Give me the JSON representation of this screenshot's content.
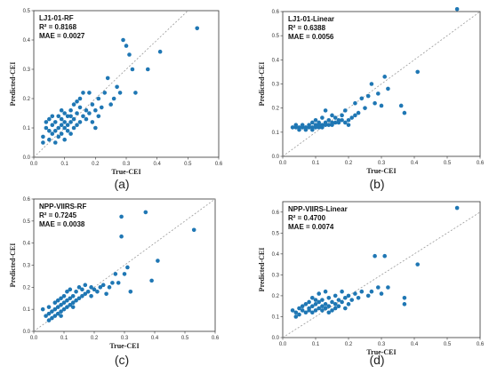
{
  "chart_data": [
    {
      "type": "scatter",
      "panel_label": "(a)",
      "annotations": [
        "LJ1-01-RF",
        "R² = 0.8168",
        "MAE = 0.0027"
      ],
      "xlabel": "True-CEI",
      "ylabel": "Predicted-CEI",
      "xlim": [
        0,
        0.6
      ],
      "ylim": [
        0,
        0.5
      ],
      "xticks": [
        "0.0",
        "0.1",
        "0.2",
        "0.3",
        "0.4",
        "0.5",
        "0.6"
      ],
      "yticks": [
        "0.0",
        "0.1",
        "0.2",
        "0.3",
        "0.4",
        "0.5"
      ],
      "color": "#1f77b4",
      "points": [
        [
          0.03,
          0.07
        ],
        [
          0.04,
          0.1
        ],
        [
          0.04,
          0.12
        ],
        [
          0.05,
          0.06
        ],
        [
          0.05,
          0.09
        ],
        [
          0.05,
          0.13
        ],
        [
          0.06,
          0.08
        ],
        [
          0.06,
          0.11
        ],
        [
          0.07,
          0.05
        ],
        [
          0.07,
          0.09
        ],
        [
          0.07,
          0.12
        ],
        [
          0.08,
          0.07
        ],
        [
          0.08,
          0.1
        ],
        [
          0.08,
          0.14
        ],
        [
          0.09,
          0.08
        ],
        [
          0.09,
          0.11
        ],
        [
          0.09,
          0.13
        ],
        [
          0.1,
          0.06
        ],
        [
          0.1,
          0.1
        ],
        [
          0.1,
          0.12
        ],
        [
          0.1,
          0.15
        ],
        [
          0.11,
          0.09
        ],
        [
          0.11,
          0.11
        ],
        [
          0.11,
          0.14
        ],
        [
          0.12,
          0.08
        ],
        [
          0.12,
          0.12
        ],
        [
          0.12,
          0.16
        ],
        [
          0.13,
          0.1
        ],
        [
          0.13,
          0.13
        ],
        [
          0.13,
          0.18
        ],
        [
          0.14,
          0.11
        ],
        [
          0.14,
          0.15
        ],
        [
          0.15,
          0.12
        ],
        [
          0.15,
          0.17
        ],
        [
          0.15,
          0.2
        ],
        [
          0.16,
          0.14
        ],
        [
          0.16,
          0.22
        ],
        [
          0.17,
          0.13
        ],
        [
          0.17,
          0.16
        ],
        [
          0.18,
          0.22
        ],
        [
          0.18,
          0.15
        ],
        [
          0.19,
          0.12
        ],
        [
          0.19,
          0.18
        ],
        [
          0.2,
          0.1
        ],
        [
          0.2,
          0.16
        ],
        [
          0.21,
          0.14
        ],
        [
          0.21,
          0.2
        ],
        [
          0.22,
          0.17
        ],
        [
          0.23,
          0.22
        ],
        [
          0.24,
          0.27
        ],
        [
          0.25,
          0.18
        ],
        [
          0.26,
          0.2
        ],
        [
          0.27,
          0.24
        ],
        [
          0.28,
          0.22
        ],
        [
          0.29,
          0.4
        ],
        [
          0.3,
          0.38
        ],
        [
          0.31,
          0.35
        ],
        [
          0.32,
          0.3
        ],
        [
          0.33,
          0.22
        ],
        [
          0.37,
          0.3
        ],
        [
          0.41,
          0.36
        ],
        [
          0.53,
          0.44
        ],
        [
          0.03,
          0.05
        ],
        [
          0.06,
          0.14
        ],
        [
          0.09,
          0.16
        ],
        [
          0.12,
          0.14
        ],
        [
          0.14,
          0.19
        ]
      ]
    },
    {
      "type": "scatter",
      "panel_label": "(b)",
      "annotations": [
        "LJ1-01-Linear",
        "R² = 0.6388",
        "MAE = 0.0056"
      ],
      "xlabel": "True-CEI",
      "ylabel": "Predicted-CEI",
      "xlim": [
        0,
        0.6
      ],
      "ylim": [
        0,
        0.6
      ],
      "xticks": [
        "0.0",
        "0.1",
        "0.2",
        "0.3",
        "0.4",
        "0.5",
        "0.6"
      ],
      "yticks": [
        "0.0",
        "0.1",
        "0.2",
        "0.3",
        "0.4",
        "0.5",
        "0.6"
      ],
      "color": "#1f77b4",
      "points": [
        [
          0.03,
          0.12
        ],
        [
          0.04,
          0.13
        ],
        [
          0.05,
          0.11
        ],
        [
          0.05,
          0.12
        ],
        [
          0.06,
          0.12
        ],
        [
          0.06,
          0.13
        ],
        [
          0.07,
          0.11
        ],
        [
          0.07,
          0.12
        ],
        [
          0.08,
          0.12
        ],
        [
          0.08,
          0.13
        ],
        [
          0.09,
          0.11
        ],
        [
          0.09,
          0.12
        ],
        [
          0.09,
          0.14
        ],
        [
          0.1,
          0.12
        ],
        [
          0.1,
          0.13
        ],
        [
          0.1,
          0.15
        ],
        [
          0.11,
          0.12
        ],
        [
          0.11,
          0.14
        ],
        [
          0.12,
          0.12
        ],
        [
          0.12,
          0.13
        ],
        [
          0.12,
          0.16
        ],
        [
          0.13,
          0.13
        ],
        [
          0.13,
          0.14
        ],
        [
          0.13,
          0.19
        ],
        [
          0.14,
          0.13
        ],
        [
          0.14,
          0.15
        ],
        [
          0.15,
          0.13
        ],
        [
          0.15,
          0.14
        ],
        [
          0.16,
          0.14
        ],
        [
          0.16,
          0.16
        ],
        [
          0.17,
          0.14
        ],
        [
          0.17,
          0.15
        ],
        [
          0.18,
          0.15
        ],
        [
          0.18,
          0.17
        ],
        [
          0.19,
          0.14
        ],
        [
          0.19,
          0.19
        ],
        [
          0.2,
          0.15
        ],
        [
          0.2,
          0.13
        ],
        [
          0.21,
          0.16
        ],
        [
          0.22,
          0.17
        ],
        [
          0.22,
          0.22
        ],
        [
          0.23,
          0.18
        ],
        [
          0.24,
          0.24
        ],
        [
          0.25,
          0.2
        ],
        [
          0.26,
          0.25
        ],
        [
          0.27,
          0.3
        ],
        [
          0.28,
          0.22
        ],
        [
          0.29,
          0.26
        ],
        [
          0.3,
          0.21
        ],
        [
          0.31,
          0.33
        ],
        [
          0.32,
          0.28
        ],
        [
          0.36,
          0.21
        ],
        [
          0.37,
          0.18
        ],
        [
          0.41,
          0.35
        ],
        [
          0.53,
          0.61
        ],
        [
          0.04,
          0.12
        ],
        [
          0.11,
          0.13
        ],
        [
          0.15,
          0.17
        ]
      ]
    },
    {
      "type": "scatter",
      "panel_label": "(c)",
      "annotations": [
        "NPP-VIIRS-RF",
        "R² = 0.7245",
        "MAE = 0.0038"
      ],
      "xlabel": "True-CEI",
      "ylabel": "Predicted-CEI",
      "xlim": [
        0,
        0.6
      ],
      "ylim": [
        0,
        0.6
      ],
      "xticks": [
        "0.0",
        "0.1",
        "0.2",
        "0.3",
        "0.4",
        "0.5",
        "0.6"
      ],
      "yticks": [
        "0.0",
        "0.1",
        "0.2",
        "0.3",
        "0.4",
        "0.5",
        "0.6"
      ],
      "color": "#1f77b4",
      "points": [
        [
          0.03,
          0.1
        ],
        [
          0.04,
          0.07
        ],
        [
          0.05,
          0.08
        ],
        [
          0.05,
          0.11
        ],
        [
          0.06,
          0.06
        ],
        [
          0.06,
          0.09
        ],
        [
          0.07,
          0.07
        ],
        [
          0.07,
          0.1
        ],
        [
          0.07,
          0.13
        ],
        [
          0.08,
          0.08
        ],
        [
          0.08,
          0.11
        ],
        [
          0.08,
          0.14
        ],
        [
          0.09,
          0.09
        ],
        [
          0.09,
          0.12
        ],
        [
          0.09,
          0.15
        ],
        [
          0.1,
          0.1
        ],
        [
          0.1,
          0.13
        ],
        [
          0.1,
          0.16
        ],
        [
          0.11,
          0.11
        ],
        [
          0.11,
          0.14
        ],
        [
          0.11,
          0.18
        ],
        [
          0.12,
          0.12
        ],
        [
          0.12,
          0.15
        ],
        [
          0.12,
          0.19
        ],
        [
          0.13,
          0.13
        ],
        [
          0.13,
          0.16
        ],
        [
          0.14,
          0.14
        ],
        [
          0.14,
          0.18
        ],
        [
          0.15,
          0.15
        ],
        [
          0.15,
          0.2
        ],
        [
          0.16,
          0.16
        ],
        [
          0.16,
          0.19
        ],
        [
          0.17,
          0.17
        ],
        [
          0.17,
          0.21
        ],
        [
          0.18,
          0.18
        ],
        [
          0.19,
          0.16
        ],
        [
          0.19,
          0.2
        ],
        [
          0.2,
          0.19
        ],
        [
          0.21,
          0.18
        ],
        [
          0.22,
          0.2
        ],
        [
          0.23,
          0.21
        ],
        [
          0.24,
          0.17
        ],
        [
          0.25,
          0.2
        ],
        [
          0.26,
          0.22
        ],
        [
          0.27,
          0.26
        ],
        [
          0.28,
          0.22
        ],
        [
          0.29,
          0.43
        ],
        [
          0.29,
          0.52
        ],
        [
          0.3,
          0.26
        ],
        [
          0.31,
          0.29
        ],
        [
          0.32,
          0.18
        ],
        [
          0.37,
          0.54
        ],
        [
          0.39,
          0.23
        ],
        [
          0.41,
          0.32
        ],
        [
          0.53,
          0.46
        ],
        [
          0.05,
          0.05
        ],
        [
          0.09,
          0.07
        ],
        [
          0.13,
          0.11
        ]
      ]
    },
    {
      "type": "scatter",
      "panel_label": "(d)",
      "annotations": [
        "NPP-VIIRS-Linear",
        "R² = 0.4700",
        "MAE = 0.0074"
      ],
      "xlabel": "True-CEI",
      "ylabel": "Predicted-CEI",
      "xlim": [
        0,
        0.6
      ],
      "ylim": [
        0,
        0.65
      ],
      "xticks": [
        "0.0",
        "0.1",
        "0.2",
        "0.3",
        "0.4",
        "0.5",
        "0.6"
      ],
      "yticks": [
        "0.0",
        "0.1",
        "0.2",
        "0.3",
        "0.4",
        "0.5",
        "0.6"
      ],
      "color": "#1f77b4",
      "points": [
        [
          0.03,
          0.13
        ],
        [
          0.04,
          0.12
        ],
        [
          0.05,
          0.14
        ],
        [
          0.05,
          0.11
        ],
        [
          0.06,
          0.13
        ],
        [
          0.06,
          0.15
        ],
        [
          0.07,
          0.12
        ],
        [
          0.07,
          0.16
        ],
        [
          0.08,
          0.13
        ],
        [
          0.08,
          0.14
        ],
        [
          0.08,
          0.17
        ],
        [
          0.09,
          0.12
        ],
        [
          0.09,
          0.15
        ],
        [
          0.09,
          0.19
        ],
        [
          0.1,
          0.13
        ],
        [
          0.1,
          0.16
        ],
        [
          0.1,
          0.18
        ],
        [
          0.11,
          0.14
        ],
        [
          0.11,
          0.17
        ],
        [
          0.11,
          0.21
        ],
        [
          0.12,
          0.13
        ],
        [
          0.12,
          0.15
        ],
        [
          0.12,
          0.18
        ],
        [
          0.13,
          0.14
        ],
        [
          0.13,
          0.16
        ],
        [
          0.13,
          0.22
        ],
        [
          0.14,
          0.15
        ],
        [
          0.14,
          0.19
        ],
        [
          0.15,
          0.13
        ],
        [
          0.15,
          0.17
        ],
        [
          0.16,
          0.16
        ],
        [
          0.16,
          0.2
        ],
        [
          0.17,
          0.15
        ],
        [
          0.17,
          0.18
        ],
        [
          0.18,
          0.17
        ],
        [
          0.18,
          0.22
        ],
        [
          0.19,
          0.14
        ],
        [
          0.19,
          0.19
        ],
        [
          0.2,
          0.16
        ],
        [
          0.2,
          0.2
        ],
        [
          0.21,
          0.18
        ],
        [
          0.22,
          0.21
        ],
        [
          0.23,
          0.19
        ],
        [
          0.24,
          0.22
        ],
        [
          0.26,
          0.2
        ],
        [
          0.27,
          0.22
        ],
        [
          0.28,
          0.39
        ],
        [
          0.29,
          0.24
        ],
        [
          0.3,
          0.21
        ],
        [
          0.31,
          0.39
        ],
        [
          0.32,
          0.24
        ],
        [
          0.37,
          0.19
        ],
        [
          0.37,
          0.16
        ],
        [
          0.41,
          0.35
        ],
        [
          0.53,
          0.62
        ],
        [
          0.04,
          0.1
        ],
        [
          0.14,
          0.12
        ],
        [
          0.16,
          0.14
        ]
      ]
    }
  ]
}
